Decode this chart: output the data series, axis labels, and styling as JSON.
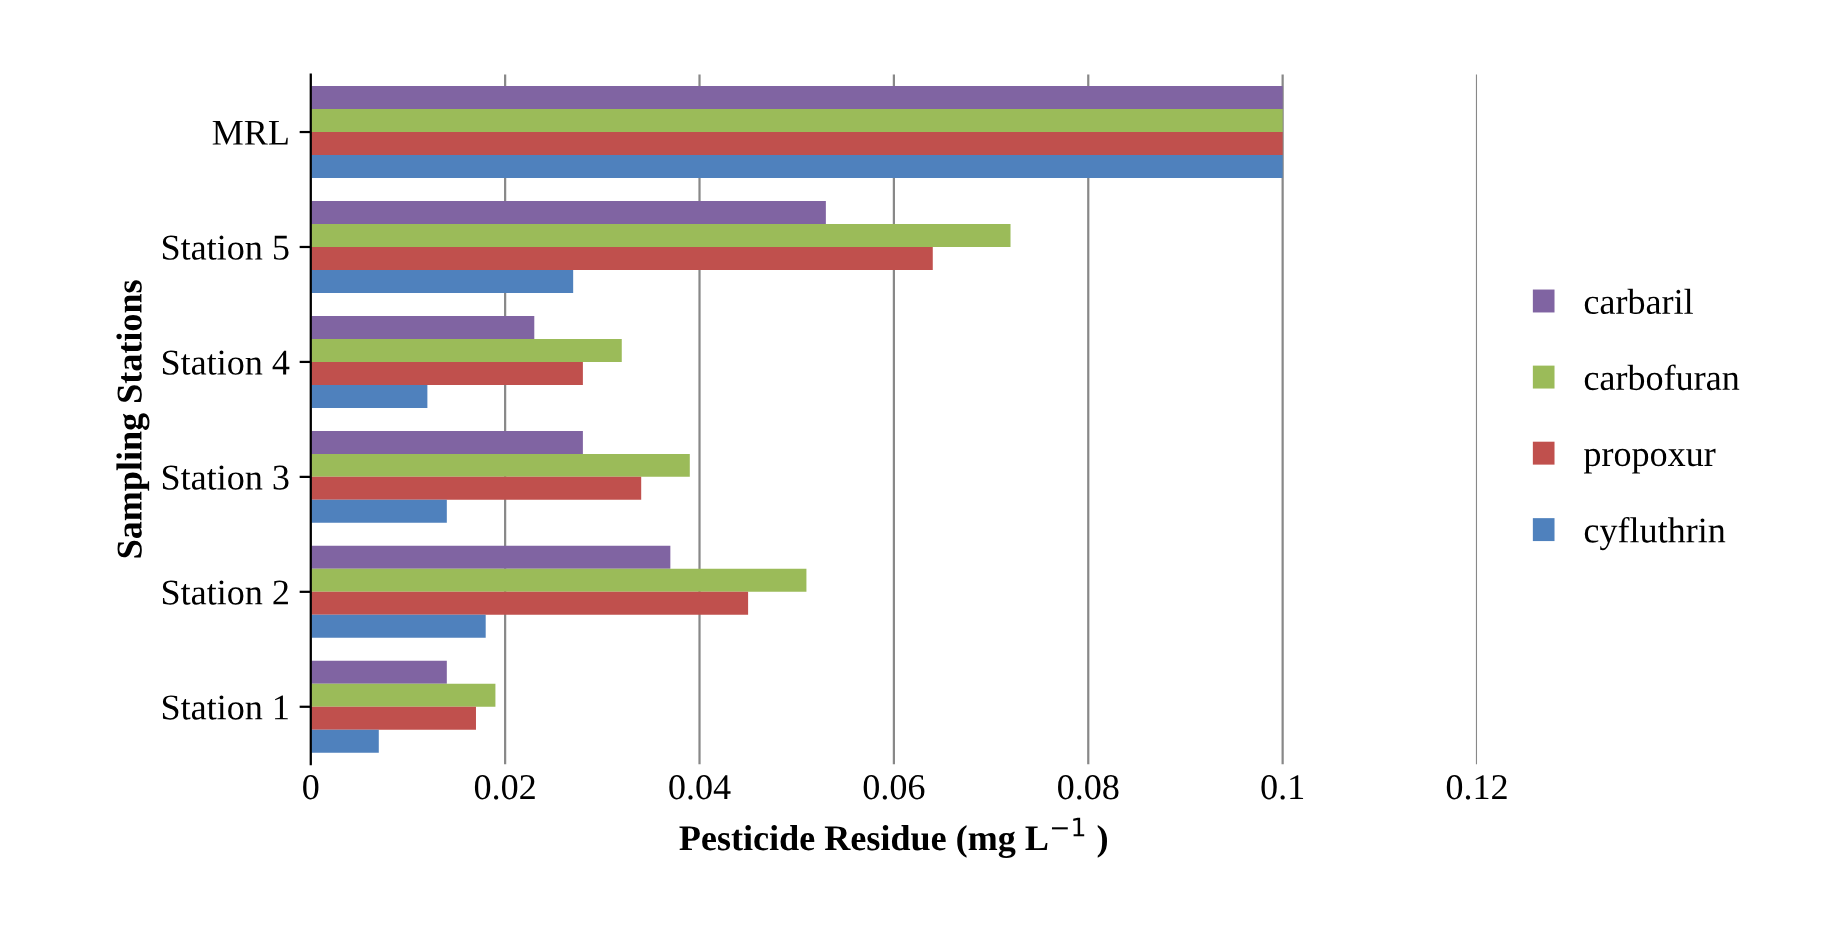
{
  "chart_data": {
    "type": "bar",
    "orientation": "horizontal",
    "xlabel": "Pesticide Residue (mg L$^{−1}$ )",
    "ylabel": "Sampling Stations",
    "categories": [
      "MRL",
      "Station 5",
      "Station 4",
      "Station 3",
      "Station 2",
      "Station 1"
    ],
    "series": [
      {
        "name": "carbaril",
        "color": "#8064a2",
        "values": [
          0.1,
          0.053,
          0.023,
          0.028,
          0.037,
          0.014
        ]
      },
      {
        "name": "carbofuran",
        "color": "#9bbb59",
        "values": [
          0.1,
          0.072,
          0.032,
          0.039,
          0.051,
          0.019
        ]
      },
      {
        "name": "propoxur",
        "color": "#c0504d",
        "values": [
          0.1,
          0.064,
          0.028,
          0.034,
          0.045,
          0.017
        ]
      },
      {
        "name": "cyfluthrin",
        "color": "#4f81bd",
        "values": [
          0.1,
          0.027,
          0.012,
          0.014,
          0.018,
          0.007
        ]
      }
    ],
    "xlim": [
      0,
      0.12
    ],
    "xticks": [
      0,
      0.02,
      0.04,
      0.06,
      0.08,
      0.1,
      0.12
    ],
    "grid": "x",
    "legend": "right"
  }
}
